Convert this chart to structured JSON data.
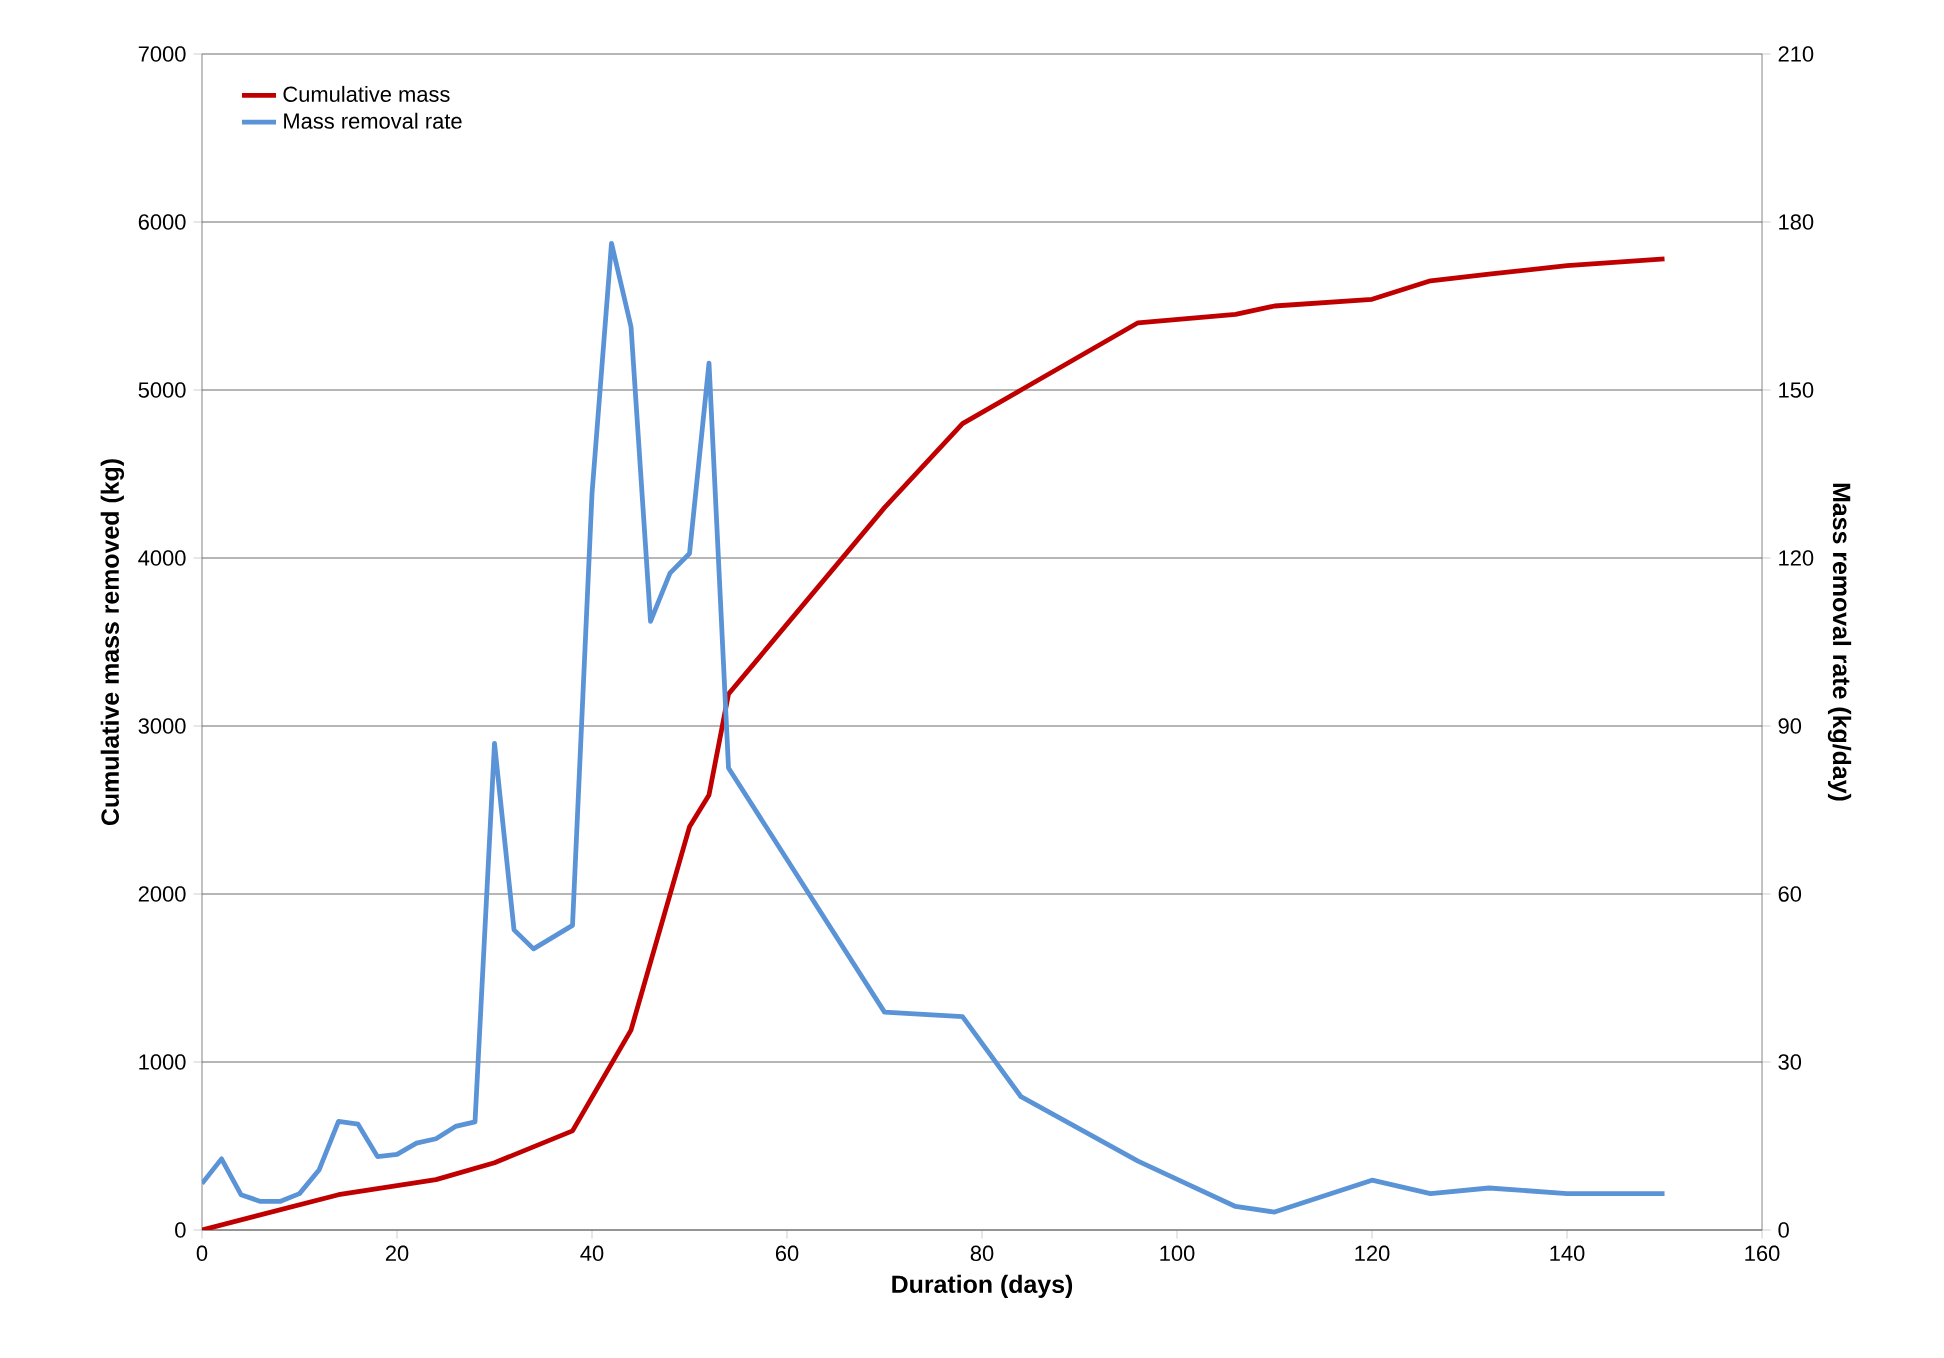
{
  "chart_data": {
    "type": "line",
    "xlabel": "Duration (days)",
    "ylabel": "Cumulative mass removed (kg)",
    "y2label": "Mass removal rate (kg/day)",
    "xlim": [
      0,
      160
    ],
    "xticks": [
      0,
      20,
      40,
      60,
      80,
      100,
      120,
      140,
      160
    ],
    "ylim": [
      0,
      7000
    ],
    "yticks": [
      0,
      1000,
      2000,
      3000,
      4000,
      5000,
      6000,
      7000
    ],
    "y2lim": [
      0,
      210
    ],
    "y2ticks": [
      0,
      30,
      60,
      90,
      120,
      150,
      180,
      210
    ],
    "grid": "y",
    "legend": "top left",
    "marker": "none",
    "line_style": "solid",
    "series": [
      {
        "name": "Cumulative mass",
        "color": "#c00000",
        "x": [
          0,
          14,
          24,
          30,
          38,
          44,
          50,
          52,
          54,
          70,
          78,
          84,
          96,
          106,
          110,
          120,
          126,
          132,
          140,
          150
        ],
        "values": [
          0,
          210,
          300,
          400,
          590,
          1190,
          2400,
          2590,
          3190,
          4300,
          4800,
          5000,
          5400,
          5450,
          5500,
          5540,
          5650,
          5690,
          5740,
          5780
        ]
      },
      {
        "name": "Mass removal rate",
        "color": "#5b93d7",
        "axis": "y2",
        "x": [
          0,
          2,
          4,
          6,
          8,
          10,
          12,
          14,
          16,
          18,
          20,
          22,
          24,
          26,
          28,
          30,
          32,
          34,
          38,
          40,
          42,
          44,
          46,
          48,
          50,
          52,
          54,
          70,
          78,
          84,
          96,
          106,
          110,
          120,
          126,
          132,
          140,
          150
        ],
        "values": [
          8.3,
          12.7,
          6.3,
          5.1,
          5.1,
          6.5,
          10.7,
          19.4,
          18.9,
          13.1,
          13.5,
          15.5,
          16.3,
          18.5,
          19.3,
          86.9,
          53.6,
          50.2,
          54.4,
          131.5,
          176.2,
          161.3,
          108.7,
          117.3,
          120.8,
          154.8,
          82.5,
          38.9,
          38.1,
          23.8,
          12.3,
          4.2,
          3.2,
          8.9,
          6.5,
          7.5,
          6.5,
          6.5
        ]
      }
    ]
  }
}
